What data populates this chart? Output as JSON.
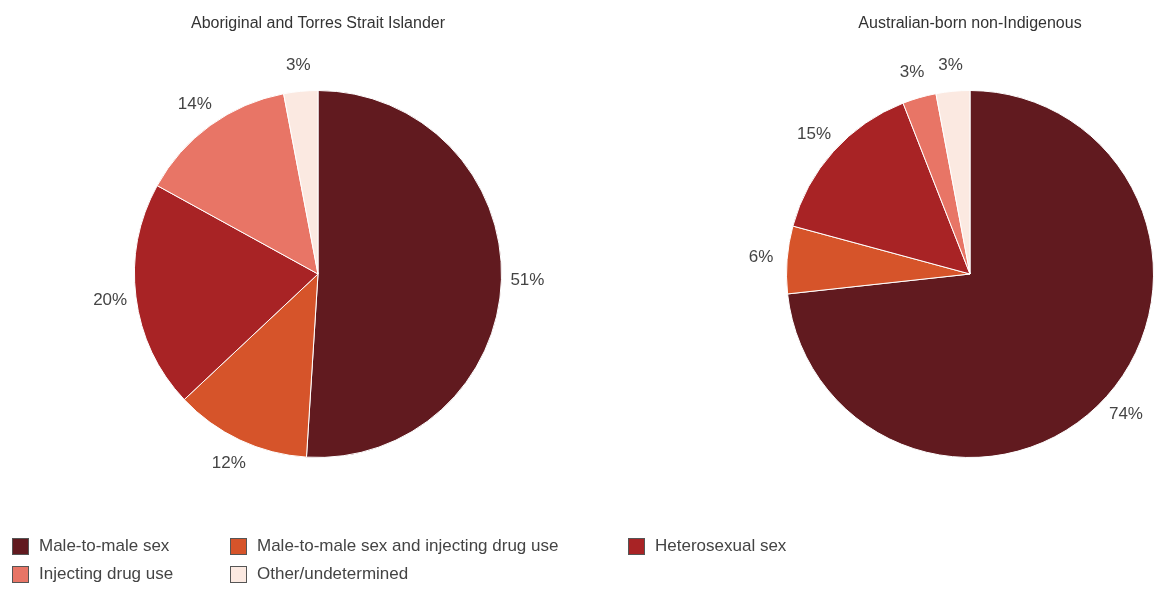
{
  "chart_data": [
    {
      "type": "pie",
      "title": "Aboriginal and Torres Strait Islander",
      "categories": [
        "Male-to-male sex",
        "Male-to-male sex and injecting drug use",
        "Heterosexual sex",
        "Injecting drug use",
        "Other/undetermined"
      ],
      "values": [
        51,
        12,
        20,
        14,
        3
      ],
      "colors": [
        "#611a1f",
        "#d6542a",
        "#a82325",
        "#e87566",
        "#fbe9e1"
      ],
      "value_labels": [
        "51%",
        "12%",
        "20%",
        "14%",
        "3%"
      ],
      "legend": "bottom"
    },
    {
      "type": "pie",
      "title": "Australian-born non-Indigenous",
      "categories": [
        null,
        null,
        null,
        null,
        null
      ],
      "values": [
        74,
        6,
        15,
        3,
        3
      ],
      "colors": [
        "#611a1f",
        "#d6542a",
        "#a82325",
        "#e87566",
        "#fbe9e1"
      ],
      "value_labels": [
        "74%",
        "6%",
        "15%",
        "3%",
        "3%"
      ]
    }
  ]
}
